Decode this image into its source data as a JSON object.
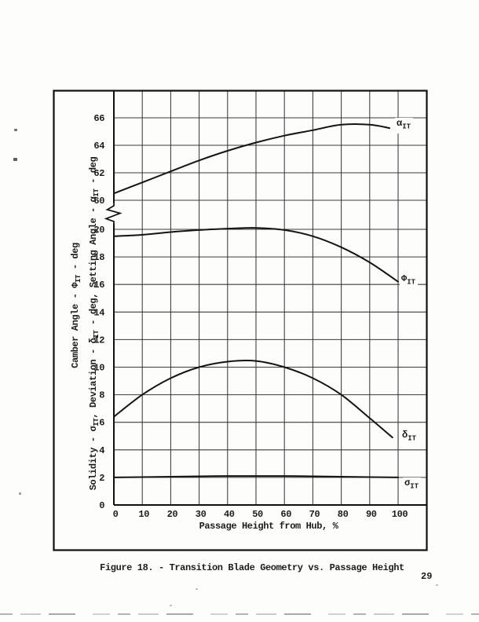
{
  "page": {
    "caption": "Figure 18. - Transition Blade Geometry vs. Passage Height",
    "page_number": "29"
  },
  "chart_data": {
    "type": "line",
    "title": "Transition Blade Geometry vs. Passage Height",
    "grid": true,
    "x_axis": {
      "label": "Passage Height from Hub, %",
      "min": 0,
      "max": 100,
      "ticks": [
        0,
        10,
        20,
        30,
        40,
        50,
        60,
        70,
        80,
        90,
        100
      ]
    },
    "y_axis": {
      "broken_axis": true,
      "upper_section": {
        "ticks": [
          60,
          62,
          64,
          66
        ],
        "range": [
          59,
          67.3
        ],
        "unit": "deg"
      },
      "lower_section": {
        "ticks": [
          0,
          2,
          4,
          6,
          8,
          10,
          12,
          14,
          16,
          18,
          20
        ],
        "range": [
          0,
          20.6
        ],
        "unit": "deg"
      },
      "titles": [
        {
          "name": "camber-angle-axis-title",
          "segments": [
            {
              "t": "Camber Angle - "
            },
            {
              "t": "Φ"
            },
            {
              "t": "IT",
              "sub": true
            },
            {
              "t": " - deg"
            }
          ],
          "pos": {
            "left": 97,
            "top": 389
          }
        },
        {
          "name": "solidity-deviation-setting-angle-axis-title",
          "segments": [
            {
              "t": "Solidity - "
            },
            {
              "t": "σ"
            },
            {
              "t": "IT",
              "sub": true
            },
            {
              "t": ", Deviation - "
            },
            {
              "t": "δ"
            },
            {
              "t": "IT",
              "sub": true
            },
            {
              "t": " - deg, Setting Angle - "
            },
            {
              "t": "α"
            },
            {
              "t": "IT",
              "sub": true
            },
            {
              "t": " - deg"
            }
          ],
          "pos": {
            "left": 120,
            "top": 412
          }
        }
      ]
    },
    "series": [
      {
        "name": "setting-angle",
        "symbol": "α",
        "sub": "IT",
        "section": "upper",
        "x": [
          0,
          10,
          20,
          30,
          40,
          50,
          60,
          70,
          80,
          90,
          97
        ],
        "y": [
          60.5,
          61.3,
          62.1,
          62.9,
          63.6,
          64.2,
          64.7,
          65.1,
          65.5,
          65.5,
          65.25
        ],
        "label_pos": {
          "left": 503,
          "top": 150
        }
      },
      {
        "name": "camber-angle",
        "symbol": "Φ",
        "sub": "IT",
        "section": "lower",
        "x": [
          0,
          10,
          20,
          30,
          40,
          50,
          60,
          70,
          80,
          90,
          100
        ],
        "y": [
          19.5,
          19.6,
          19.8,
          19.95,
          20.05,
          20.1,
          19.95,
          19.5,
          18.7,
          17.6,
          16.2
        ],
        "label_pos": {
          "left": 509,
          "top": 348
        }
      },
      {
        "name": "deviation",
        "symbol": "δ",
        "sub": "IT",
        "section": "lower",
        "x": [
          0,
          10,
          20,
          30,
          40,
          50,
          60,
          70,
          80,
          90,
          98
        ],
        "y": [
          6.4,
          8.0,
          9.2,
          10.0,
          10.4,
          10.45,
          10.0,
          9.2,
          8.0,
          6.3,
          4.9
        ],
        "label_pos": {
          "left": 510,
          "top": 547
        }
      },
      {
        "name": "solidity",
        "symbol": "σ",
        "sub": "IT",
        "section": "lower",
        "x": [
          0,
          10,
          20,
          30,
          40,
          50,
          60,
          70,
          80,
          90,
          100
        ],
        "y": [
          2.0,
          2.02,
          2.05,
          2.08,
          2.1,
          2.1,
          2.1,
          2.08,
          2.05,
          2.02,
          2.0
        ],
        "label_pos": {
          "left": 513,
          "top": 608
        }
      }
    ]
  }
}
